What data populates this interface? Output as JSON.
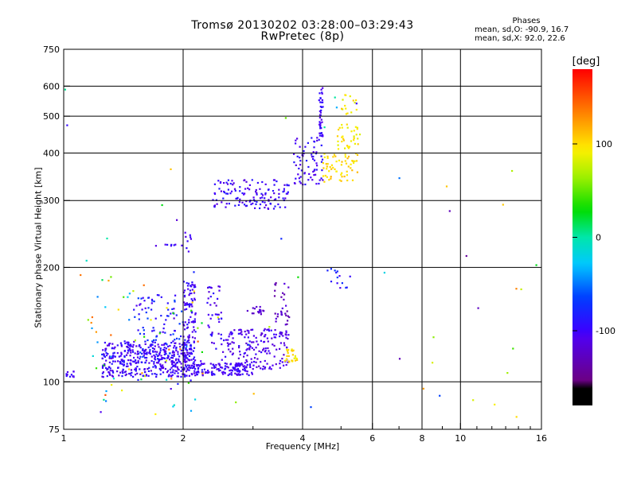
{
  "header": {
    "title_line1": "Tromsø 20130202 03:28:00–03:29:43",
    "title_line2": "RwPretec (8p)"
  },
  "stats": {
    "heading": "Phases",
    "line_o": "mean, sd,O: -90.9, 16.7",
    "line_x": "mean, sd,X:  92.0, 22.6"
  },
  "colorbar": {
    "title": "[deg]",
    "range": [
      -180,
      180
    ],
    "ticks": [
      100,
      0,
      -100
    ],
    "tick_labels": [
      "100",
      "0",
      "-100"
    ]
  },
  "chart_data": {
    "type": "scatter",
    "xlabel": "Frequency [MHz]",
    "ylabel": "Stationary phase Virtual Height [km]",
    "xscale": "log",
    "yscale": "log",
    "xlim": [
      1,
      16
    ],
    "ylim": [
      75,
      750
    ],
    "xticks": [
      1,
      2,
      4,
      6,
      8,
      10,
      16
    ],
    "xtick_labels": [
      "1",
      "2",
      "4",
      "6",
      "8",
      "10",
      "16"
    ],
    "yticks": [
      75,
      100,
      200,
      300,
      400,
      500,
      600,
      750
    ],
    "ytick_labels": [
      "75",
      "100",
      "200",
      "300",
      "400",
      "500",
      "600",
      "750"
    ],
    "x_gridlines": [
      2,
      4,
      6,
      8,
      10
    ],
    "y_gridlines": [
      100,
      200,
      300,
      400,
      500,
      600
    ],
    "clusters": [
      {
        "x": [
          1.25,
          2.1
        ],
        "y": [
          103,
          128
        ],
        "phase": [
          -115,
          -85
        ],
        "n": 420
      },
      {
        "x": [
          1.5,
          2.0
        ],
        "y": [
          115,
          170
        ],
        "phase": [
          -110,
          -60
        ],
        "n": 90
      },
      {
        "x": [
          2.0,
          2.15
        ],
        "y": [
          108,
          185
        ],
        "phase": [
          -115,
          -85
        ],
        "n": 120
      },
      {
        "x": [
          2.1,
          3.0
        ],
        "y": [
          104,
          112
        ],
        "phase": [
          -115,
          -90
        ],
        "n": 140
      },
      {
        "x": [
          2.3,
          2.5
        ],
        "y": [
          120,
          180
        ],
        "phase": [
          -120,
          -90
        ],
        "n": 40
      },
      {
        "x": [
          2.5,
          3.7
        ],
        "y": [
          108,
          138
        ],
        "phase": [
          -120,
          -95
        ],
        "n": 170
      },
      {
        "x": [
          2.9,
          3.2
        ],
        "y": [
          150,
          158
        ],
        "phase": [
          -130,
          -110
        ],
        "n": 18
      },
      {
        "x": [
          3.4,
          3.7
        ],
        "y": [
          140,
          185
        ],
        "phase": [
          -140,
          -110
        ],
        "n": 30
      },
      {
        "x": [
          3.6,
          3.9
        ],
        "y": [
          112,
          122
        ],
        "phase": [
          85,
          110
        ],
        "n": 25
      },
      {
        "x": [
          1.0,
          1.1
        ],
        "y": [
          103,
          107
        ],
        "phase": [
          -110,
          -90
        ],
        "n": 12
      },
      {
        "x": [
          1.15,
          2.3
        ],
        "y": [
          80,
          195
        ],
        "phase": [
          -130,
          150
        ],
        "n": 70
      },
      {
        "x": [
          2.35,
          3.7
        ],
        "y": [
          285,
          340
        ],
        "phase": [
          -115,
          -85
        ],
        "n": 130
      },
      {
        "x": [
          3.8,
          4.5
        ],
        "y": [
          330,
          440
        ],
        "phase": [
          -115,
          -85
        ],
        "n": 70
      },
      {
        "x": [
          4.4,
          4.5
        ],
        "y": [
          440,
          610
        ],
        "phase": [
          -110,
          -90
        ],
        "n": 40
      },
      {
        "x": [
          4.5,
          5.5
        ],
        "y": [
          335,
          400
        ],
        "phase": [
          90,
          115
        ],
        "n": 60
      },
      {
        "x": [
          4.9,
          5.6
        ],
        "y": [
          410,
          480
        ],
        "phase": [
          80,
          110
        ],
        "n": 35
      },
      {
        "x": [
          5.0,
          5.5
        ],
        "y": [
          500,
          570
        ],
        "phase": [
          80,
          110
        ],
        "n": 15
      },
      {
        "x": [
          4.6,
          5.3
        ],
        "y": [
          175,
          200
        ],
        "phase": [
          -110,
          -60
        ],
        "n": 14
      },
      {
        "x": [
          1.7,
          2.0
        ],
        "y": [
          228,
          230
        ],
        "phase": [
          -115,
          -90
        ],
        "n": 8
      },
      {
        "x": [
          2.0,
          2.1
        ],
        "y": [
          220,
          255
        ],
        "phase": [
          -115,
          -90
        ],
        "n": 8
      },
      {
        "x": [
          1.0,
          16.0
        ],
        "y": [
          80,
          650
        ],
        "phase": [
          -150,
          150
        ],
        "n": 45
      }
    ]
  }
}
